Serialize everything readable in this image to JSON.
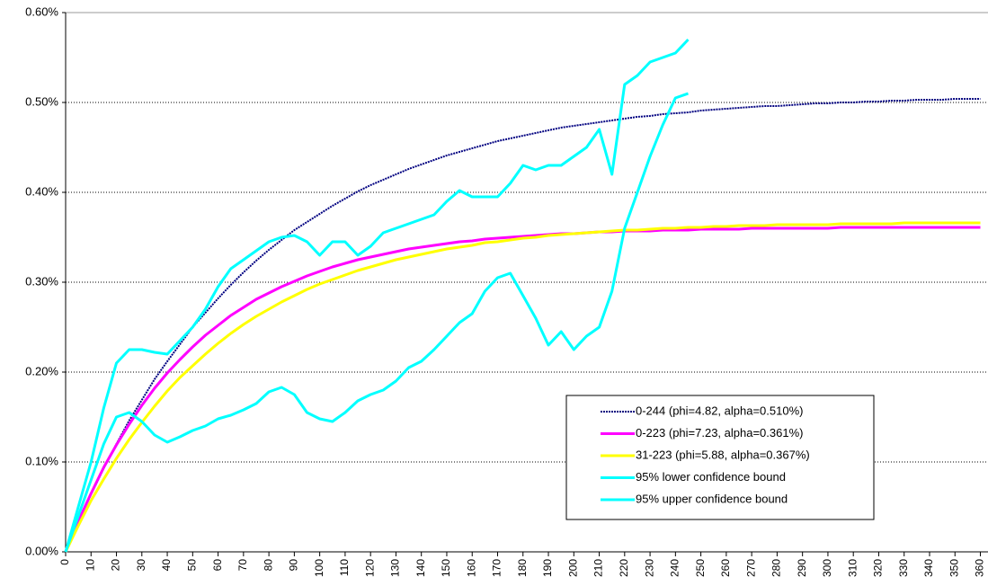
{
  "chart_data": {
    "type": "line",
    "x": [
      0,
      5,
      10,
      15,
      20,
      25,
      30,
      35,
      40,
      45,
      50,
      55,
      60,
      65,
      70,
      75,
      80,
      85,
      90,
      95,
      100,
      105,
      110,
      115,
      120,
      125,
      130,
      135,
      140,
      145,
      150,
      155,
      160,
      165,
      170,
      175,
      180,
      185,
      190,
      195,
      200,
      205,
      210,
      215,
      220,
      225,
      230,
      235,
      240,
      245,
      250,
      255,
      260,
      265,
      270,
      275,
      280,
      285,
      290,
      295,
      300,
      305,
      310,
      315,
      320,
      325,
      330,
      335,
      340,
      345,
      350,
      355,
      360
    ],
    "xlim": [
      0,
      363
    ],
    "xticks": [
      0,
      10,
      20,
      30,
      40,
      50,
      60,
      70,
      80,
      90,
      100,
      110,
      120,
      130,
      140,
      150,
      160,
      170,
      180,
      190,
      200,
      210,
      220,
      230,
      240,
      250,
      260,
      270,
      280,
      290,
      300,
      310,
      320,
      330,
      340,
      350,
      360
    ],
    "ylim": [
      0,
      0.6
    ],
    "yticks": [
      {
        "value": 0,
        "label": "0.00%"
      },
      {
        "value": 0.1,
        "label": "0.10%"
      },
      {
        "value": 0.2,
        "label": "0.20%"
      },
      {
        "value": 0.3,
        "label": "0.30%"
      },
      {
        "value": 0.4,
        "label": "0.40%"
      },
      {
        "value": 0.5,
        "label": "0.50%"
      },
      {
        "value": 0.6,
        "label": "0.60%"
      }
    ],
    "grid": true,
    "legend": "lower-right",
    "series": [
      {
        "name": "0-244 (phi=4.82, alpha=0.510%)",
        "color": "#000080",
        "dash": true,
        "values": [
          0,
          0.033,
          0.064,
          0.093,
          0.12,
          0.146,
          0.169,
          0.192,
          0.212,
          0.231,
          0.25,
          0.266,
          0.282,
          0.297,
          0.311,
          0.324,
          0.336,
          0.347,
          0.358,
          0.367,
          0.376,
          0.385,
          0.393,
          0.401,
          0.408,
          0.414,
          0.42,
          0.426,
          0.431,
          0.436,
          0.441,
          0.445,
          0.449,
          0.453,
          0.457,
          0.46,
          0.463,
          0.466,
          0.469,
          0.472,
          0.474,
          0.476,
          0.478,
          0.48,
          0.482,
          0.484,
          0.485,
          0.487,
          0.488,
          0.489,
          0.491,
          0.492,
          0.493,
          0.494,
          0.495,
          0.496,
          0.496,
          0.497,
          0.498,
          0.499,
          0.499,
          0.5,
          0.5,
          0.501,
          0.501,
          0.502,
          0.502,
          0.503,
          0.503,
          0.503,
          0.504,
          0.504,
          0.504
        ]
      },
      {
        "name": "0-223 (phi=7.23, alpha=0.361%)",
        "color": "#ff00ff",
        "dash": false,
        "values": [
          0,
          0.034,
          0.065,
          0.094,
          0.119,
          0.142,
          0.163,
          0.182,
          0.199,
          0.214,
          0.228,
          0.241,
          0.252,
          0.263,
          0.272,
          0.281,
          0.288,
          0.295,
          0.301,
          0.307,
          0.312,
          0.317,
          0.321,
          0.325,
          0.328,
          0.331,
          0.334,
          0.337,
          0.339,
          0.341,
          0.343,
          0.345,
          0.346,
          0.348,
          0.349,
          0.35,
          0.351,
          0.352,
          0.353,
          0.354,
          0.354,
          0.355,
          0.356,
          0.356,
          0.357,
          0.357,
          0.357,
          0.358,
          0.358,
          0.358,
          0.359,
          0.359,
          0.359,
          0.359,
          0.36,
          0.36,
          0.36,
          0.36,
          0.36,
          0.36,
          0.36,
          0.361,
          0.361,
          0.361,
          0.361,
          0.361,
          0.361,
          0.361,
          0.361,
          0.361,
          0.361,
          0.361,
          0.361
        ]
      },
      {
        "name": "31-223 (phi=5.88, alpha=0.367%)",
        "color": "#ffff00",
        "dash": false,
        "values": [
          0,
          0.029,
          0.057,
          0.081,
          0.104,
          0.125,
          0.144,
          0.162,
          0.179,
          0.194,
          0.207,
          0.22,
          0.232,
          0.243,
          0.253,
          0.262,
          0.27,
          0.278,
          0.285,
          0.292,
          0.298,
          0.303,
          0.308,
          0.313,
          0.317,
          0.321,
          0.325,
          0.328,
          0.331,
          0.334,
          0.337,
          0.339,
          0.341,
          0.344,
          0.345,
          0.347,
          0.349,
          0.35,
          0.352,
          0.353,
          0.354,
          0.355,
          0.356,
          0.357,
          0.358,
          0.358,
          0.359,
          0.36,
          0.36,
          0.361,
          0.361,
          0.362,
          0.362,
          0.363,
          0.363,
          0.363,
          0.364,
          0.364,
          0.364,
          0.364,
          0.364,
          0.365,
          0.365,
          0.365,
          0.365,
          0.365,
          0.366,
          0.366,
          0.366,
          0.366,
          0.366,
          0.366,
          0.366
        ]
      },
      {
        "name": "95% lower confidence bound",
        "color": "#00ffff",
        "dash": false,
        "values": [
          0,
          0.04,
          0.08,
          0.12,
          0.15,
          0.155,
          0.145,
          0.13,
          0.122,
          0.128,
          0.135,
          0.14,
          0.148,
          0.152,
          0.158,
          0.165,
          0.178,
          0.183,
          0.175,
          0.155,
          0.148,
          0.145,
          0.155,
          0.168,
          0.175,
          0.18,
          0.19,
          0.205,
          0.212,
          0.225,
          0.24,
          0.255,
          0.265,
          0.29,
          0.305,
          0.31,
          0.285,
          0.26,
          0.23,
          0.245,
          0.225,
          0.24,
          0.25,
          0.29,
          0.36,
          0.4,
          0.44,
          0.475,
          0.505,
          0.51,
          null,
          null,
          null,
          null,
          null,
          null,
          null,
          null,
          null,
          null,
          null,
          null,
          null,
          null,
          null,
          null,
          null,
          null,
          null,
          null,
          null,
          null,
          null
        ]
      },
      {
        "name": "95% upper confidence bound",
        "color": "#00ffff",
        "dash": false,
        "values": [
          0,
          0.05,
          0.1,
          0.16,
          0.21,
          0.225,
          0.225,
          0.222,
          0.22,
          0.235,
          0.25,
          0.27,
          0.295,
          0.315,
          0.325,
          0.335,
          0.345,
          0.35,
          0.352,
          0.345,
          0.33,
          0.345,
          0.345,
          0.33,
          0.34,
          0.355,
          0.36,
          0.365,
          0.37,
          0.375,
          0.39,
          0.402,
          0.395,
          0.395,
          0.395,
          0.41,
          0.43,
          0.425,
          0.43,
          0.43,
          0.44,
          0.45,
          0.47,
          0.42,
          0.52,
          0.53,
          0.545,
          0.55,
          0.555,
          0.57,
          null,
          null,
          null,
          null,
          null,
          null,
          null,
          null,
          null,
          null,
          null,
          null,
          null,
          null,
          null,
          null,
          null,
          null,
          null,
          null,
          null,
          null,
          null
        ]
      }
    ]
  }
}
